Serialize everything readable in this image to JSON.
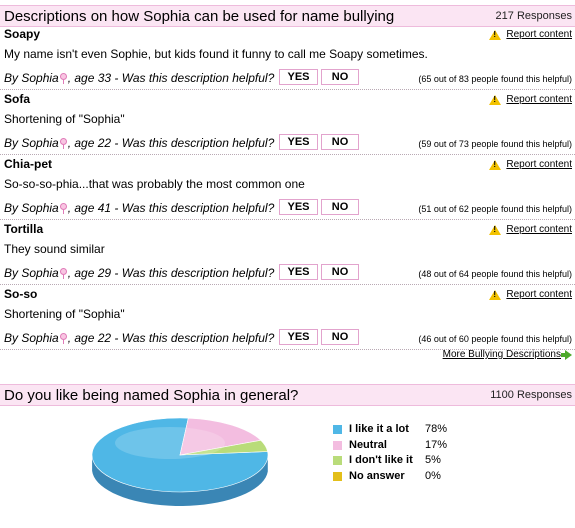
{
  "bullying": {
    "title": "Descriptions on how Sophia can be used for name bullying",
    "count": "217 Responses",
    "report_label": "Report content",
    "question": "Was this description helpful?",
    "yes_label": "YES",
    "no_label": "NO",
    "entries": [
      {
        "name": "Soapy",
        "description": "My name isn't even Sophie, but kids found it funny to call me Soapy sometimes.",
        "author": "By Sophia",
        "age": ", age 33 - ",
        "helpful": "(65 out of 83 people found this helpful)"
      },
      {
        "name": "Sofa",
        "description": "Shortening of \"Sophia\"",
        "author": "By Sophia",
        "age": ", age 22 - ",
        "helpful": "(59 out of 73 people found this helpful)"
      },
      {
        "name": "Chia-pet",
        "description": "So-so-so-phia...that was probably the most common one",
        "author": "By Sophia",
        "age": ", age 41 - ",
        "helpful": "(51 out of 62 people found this helpful)"
      },
      {
        "name": "Tortilla",
        "description": "They sound similar",
        "author": "By Sophia",
        "age": ", age 29 - ",
        "helpful": "(48 out of 64 people found this helpful)"
      },
      {
        "name": "So-so",
        "description": "Shortening of \"Sophia\"",
        "author": "By Sophia",
        "age": ", age 22 - ",
        "helpful": "(46 out of 60 people found this helpful)"
      }
    ],
    "more_label": "More Bullying Descriptions"
  },
  "poll": {
    "title": "Do you like being named Sophia in general?",
    "count": "1100 Responses",
    "options": [
      {
        "label": "I like it a lot",
        "percent": "78%",
        "value": 78,
        "color": "#4fb7e6",
        "side": "#3a86b5"
      },
      {
        "label": "Neutral",
        "percent": "17%",
        "value": 17,
        "color": "#f3bde0",
        "side": "#d97cbf"
      },
      {
        "label": "I don't like it",
        "percent": "5%",
        "value": 5,
        "color": "#b9dc7a",
        "side": "#86ad3c"
      },
      {
        "label": "No answer",
        "percent": "0%",
        "value": 0,
        "color": "#e3bf1a",
        "side": "#b29410"
      }
    ]
  }
}
